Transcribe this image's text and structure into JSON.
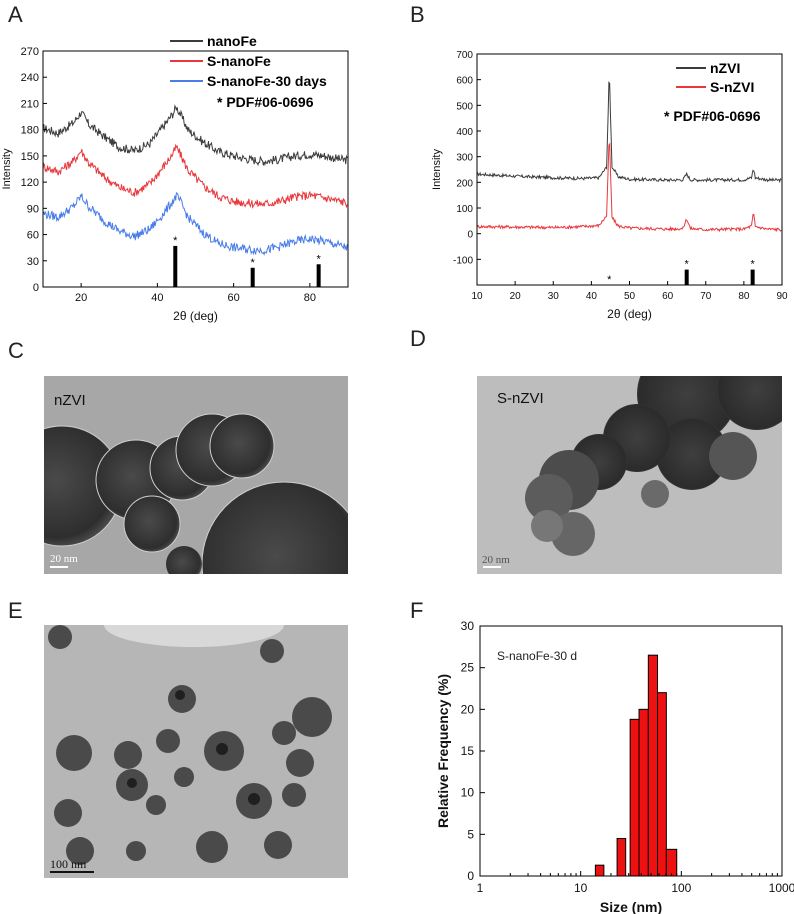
{
  "panels": {
    "a": "A",
    "b": "B",
    "c": "C",
    "d": "D",
    "e": "E",
    "f": "F"
  },
  "tem": {
    "c": {
      "label": "nZVI",
      "scale": "20 nm"
    },
    "d": {
      "label": "S-nZVI",
      "scale": "20 nm"
    },
    "e": {
      "scale": "100 nm"
    }
  },
  "colors": {
    "black_series": "#3c3c3c",
    "red_series": "#e8383d",
    "blue_series": "#4a7de8",
    "histogram_bar": "#ee1111"
  },
  "chart_data": [
    {
      "id": "A",
      "type": "line",
      "xlabel": "2θ (deg)",
      "ylabel": "Intensity",
      "xlim": [
        10,
        90
      ],
      "ylim": [
        0,
        270
      ],
      "xticks": [
        20,
        40,
        60,
        80
      ],
      "yticks": [
        0,
        30,
        60,
        90,
        120,
        150,
        180,
        210,
        240,
        270
      ],
      "legend_position": "top-right",
      "series": [
        {
          "name": "nanoFe",
          "color": "#3c3c3c",
          "x": [
            10,
            14,
            18,
            20,
            22,
            26,
            30,
            34,
            38,
            42,
            44,
            45,
            46,
            48,
            52,
            56,
            60,
            64,
            68,
            72,
            76,
            80,
            84,
            88,
            90
          ],
          "y": [
            182,
            176,
            188,
            200,
            186,
            172,
            160,
            156,
            164,
            186,
            198,
            206,
            198,
            180,
            166,
            155,
            150,
            146,
            144,
            146,
            150,
            152,
            150,
            146,
            145
          ]
        },
        {
          "name": "S-nanoFe",
          "color": "#e8383d",
          "x": [
            10,
            14,
            18,
            20,
            22,
            26,
            30,
            34,
            38,
            42,
            44,
            45,
            46,
            48,
            52,
            56,
            60,
            64,
            68,
            72,
            76,
            80,
            84,
            88,
            90
          ],
          "y": [
            138,
            132,
            144,
            156,
            142,
            126,
            114,
            108,
            118,
            140,
            152,
            160,
            152,
            134,
            116,
            104,
            98,
            96,
            95,
            98,
            103,
            105,
            102,
            98,
            96
          ]
        },
        {
          "name": "S-nanoFe-30 days",
          "color": "#4a7de8",
          "x": [
            10,
            14,
            18,
            20,
            22,
            26,
            30,
            34,
            38,
            42,
            44,
            45,
            46,
            48,
            52,
            56,
            60,
            64,
            68,
            72,
            76,
            80,
            84,
            88,
            90
          ],
          "y": [
            84,
            80,
            92,
            104,
            92,
            76,
            64,
            58,
            66,
            86,
            98,
            104,
            98,
            80,
            62,
            50,
            45,
            43,
            42,
            46,
            52,
            55,
            52,
            47,
            45
          ]
        }
      ],
      "reference": {
        "name": "PDF#06-0696",
        "x": [
          44.7,
          65.0,
          82.3
        ],
        "y": [
          47,
          22,
          26
        ]
      }
    },
    {
      "id": "B",
      "type": "line",
      "xlabel": "2θ (deg)",
      "ylabel": "Intensity",
      "xlim": [
        10,
        90
      ],
      "ylim": [
        -200,
        700
      ],
      "xticks": [
        10,
        20,
        30,
        40,
        50,
        60,
        70,
        80,
        90
      ],
      "yticks": [
        -100,
        0,
        100,
        200,
        300,
        400,
        500,
        600,
        700
      ],
      "legend_position": "top-right",
      "series": [
        {
          "name": "nZVI",
          "color": "#3c3c3c",
          "x": [
            10,
            20,
            30,
            38,
            42,
            44,
            44.7,
            45.4,
            47,
            50,
            60,
            64,
            65,
            66,
            70,
            80,
            82,
            82.5,
            83,
            86,
            90
          ],
          "y": [
            232,
            224,
            218,
            215,
            218,
            260,
            638,
            262,
            222,
            212,
            209,
            210,
            232,
            210,
            209,
            210,
            218,
            255,
            218,
            210,
            208
          ]
        },
        {
          "name": "S-nZVI",
          "color": "#e8383d",
          "x": [
            10,
            20,
            30,
            38,
            42,
            44,
            44.7,
            45.4,
            47,
            50,
            60,
            64,
            65,
            66,
            70,
            80,
            82,
            82.5,
            83,
            86,
            90
          ],
          "y": [
            28,
            26,
            24,
            28,
            32,
            70,
            392,
            64,
            30,
            22,
            18,
            20,
            58,
            20,
            16,
            18,
            30,
            82,
            28,
            18,
            16
          ]
        }
      ],
      "reference": {
        "name": "PDF#06-0696",
        "x": [
          44.7,
          65.0,
          82.3
        ],
        "y": [
          -200,
          -140,
          -140
        ]
      }
    },
    {
      "id": "F",
      "type": "bar",
      "title": "S-nanoFe-30 d",
      "xlabel": "Size (nm)",
      "ylabel": "Relative Frequency (%)",
      "x_scale": "log",
      "xlim": [
        1,
        1000
      ],
      "ylim": [
        0,
        30
      ],
      "xticks": [
        1,
        10,
        100,
        1000
      ],
      "yticks": [
        0,
        5,
        10,
        15,
        20,
        25,
        30
      ],
      "bins": [
        {
          "from": 14,
          "to": 17,
          "value": 1.3
        },
        {
          "from": 23,
          "to": 28,
          "value": 4.5
        },
        {
          "from": 31,
          "to": 38,
          "value": 18.8
        },
        {
          "from": 38,
          "to": 47,
          "value": 20.0
        },
        {
          "from": 47,
          "to": 58,
          "value": 26.5
        },
        {
          "from": 58,
          "to": 71,
          "value": 22.0
        },
        {
          "from": 71,
          "to": 90,
          "value": 3.2
        }
      ]
    }
  ]
}
